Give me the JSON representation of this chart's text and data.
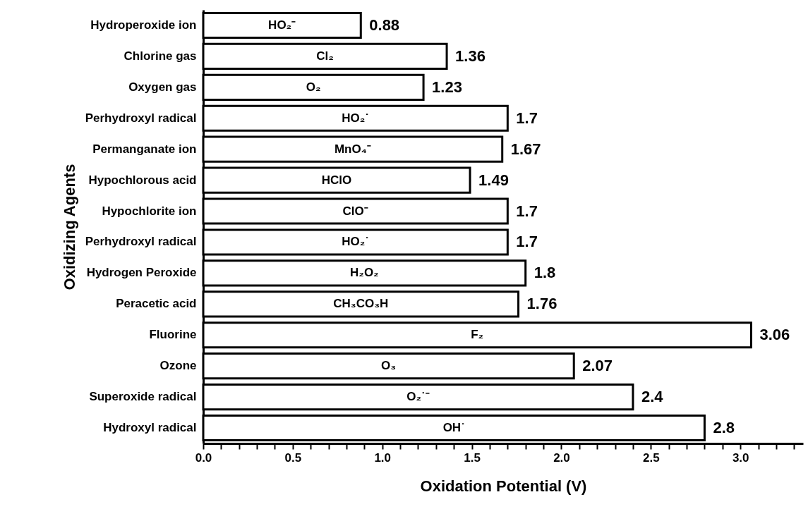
{
  "chart_data": {
    "type": "bar",
    "orientation": "horizontal",
    "xlabel": "Oxidation Potential (V)",
    "ylabel": "Oxidizing Agents",
    "categories": [
      "Hydroperoxide ion",
      "Chlorine gas",
      "Oxygen gas",
      "Perhydroxyl radical",
      "Permanganate ion",
      "Hypochlorous acid",
      "Hypochlorite ion",
      "Perhydroxyl radical",
      "Hydrogen Peroxide",
      "Peracetic acid",
      "Fluorine",
      "Ozone",
      "Superoxide radical",
      "Hydroxyl radical"
    ],
    "values": [
      0.88,
      1.36,
      1.23,
      1.7,
      1.67,
      1.49,
      1.7,
      1.7,
      1.8,
      1.76,
      3.06,
      2.07,
      2.4,
      2.8
    ],
    "color": "#ffffff",
    "data_labels": true,
    "annotations": [
      "HO₂⁻",
      "Cl₂",
      "O₂",
      "HO₂˙",
      "MnO₄⁻",
      "HClO",
      "ClO⁻",
      "HO₂˙",
      "H₂O₂",
      "CH₃CO₃H",
      "F₂",
      "O₃",
      "O₂˙⁻",
      "OH˙"
    ],
    "xlim": [
      0,
      3.35
    ],
    "xticks": [
      {
        "value": 0,
        "label": "0.0"
      },
      {
        "value": 0.1,
        "label": null
      },
      {
        "value": 0.2,
        "label": null
      },
      {
        "value": 0.3,
        "label": null
      },
      {
        "value": 0.4,
        "label": null
      },
      {
        "value": 0.5,
        "label": "0.5"
      },
      {
        "value": 0.6,
        "label": null
      },
      {
        "value": 0.7,
        "label": null
      },
      {
        "value": 0.8,
        "label": null
      },
      {
        "value": 0.9,
        "label": null
      },
      {
        "value": 1.0,
        "label": "1.0"
      },
      {
        "value": 1.1,
        "label": null
      },
      {
        "value": 1.2,
        "label": null
      },
      {
        "value": 1.3,
        "label": null
      },
      {
        "value": 1.4,
        "label": null
      },
      {
        "value": 1.5,
        "label": "1.5"
      },
      {
        "value": 1.6,
        "label": null
      },
      {
        "value": 1.7,
        "label": null
      },
      {
        "value": 1.8,
        "label": null
      },
      {
        "value": 1.9,
        "label": null
      },
      {
        "value": 2.0,
        "label": "2.0"
      },
      {
        "value": 2.1,
        "label": null
      },
      {
        "value": 2.2,
        "label": null
      },
      {
        "value": 2.3,
        "label": null
      },
      {
        "value": 2.4,
        "label": null
      },
      {
        "value": 2.5,
        "label": "2.5"
      },
      {
        "value": 2.6,
        "label": null
      },
      {
        "value": 2.7,
        "label": null
      },
      {
        "value": 2.8,
        "label": null
      },
      {
        "value": 2.9,
        "label": null
      },
      {
        "value": 3.0,
        "label": "3.0"
      },
      {
        "value": 3.1,
        "label": null
      },
      {
        "value": 3.2,
        "label": null
      },
      {
        "value": 3.3,
        "label": null
      }
    ],
    "grid": false
  }
}
